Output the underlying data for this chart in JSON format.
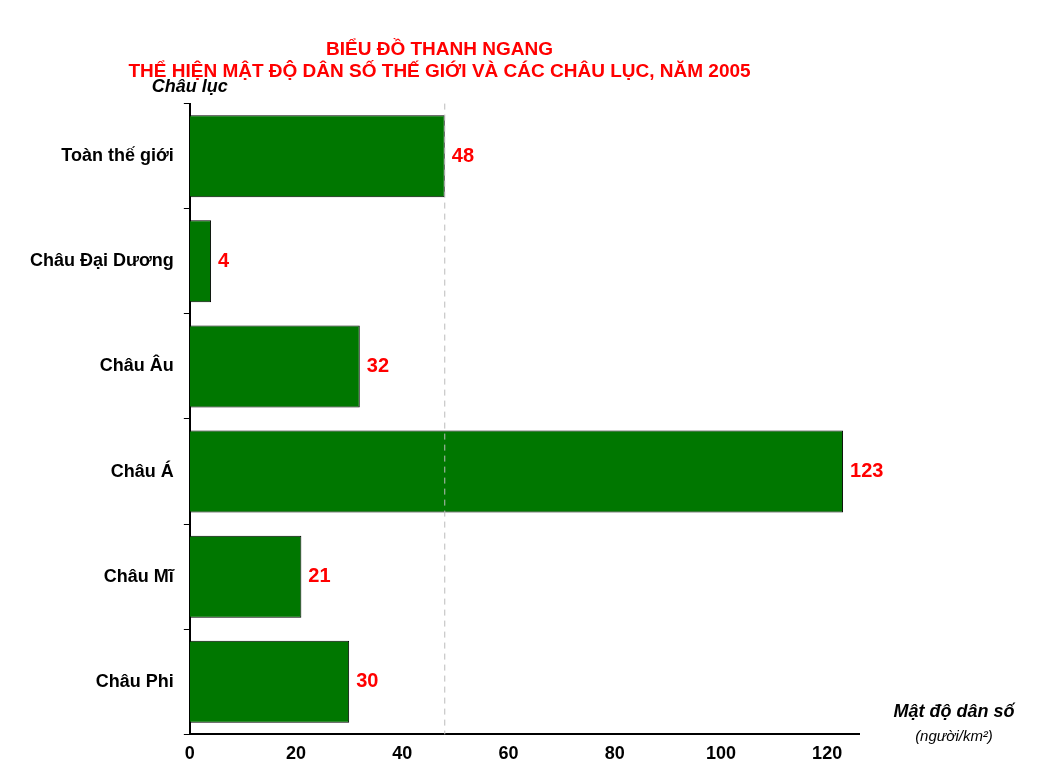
{
  "chart_data": {
    "type": "bar",
    "orientation": "horizontal",
    "title": "BIỂU ĐỒ THANH NGANG\nTHỂ HIỆN MẬT ĐỘ DÂN SỐ THẾ GIỚI VÀ CÁC CHÂU LỤC, NĂM 2005",
    "xlabel": "Mật độ dân số\n(người/km²)",
    "ylabel": "Châu lục",
    "categories": [
      "Toàn thế giới",
      "Châu Đại Dương",
      "Châu Âu",
      "Châu Á",
      "Châu Mĩ",
      "Châu Phi"
    ],
    "values": [
      48,
      4,
      32,
      123,
      21,
      30
    ],
    "color": "#007700",
    "data_labels": true,
    "xlim": [
      0,
      126
    ],
    "xticks": [
      0,
      20,
      40,
      60,
      80,
      100,
      120
    ],
    "grid": false,
    "legend": false,
    "ref_lines": [
      {
        "axis": "x",
        "value": 48,
        "color": "#bbbbbb",
        "line_style": "dashed"
      }
    ]
  }
}
